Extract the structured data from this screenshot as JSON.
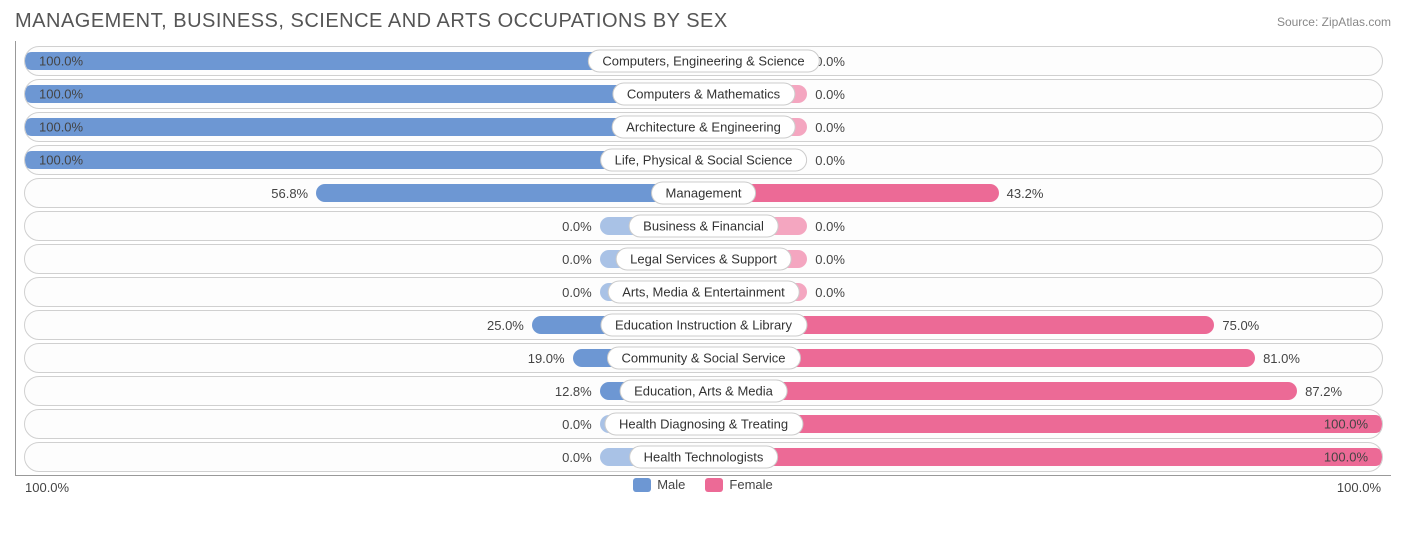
{
  "title": "MANAGEMENT, BUSINESS, SCIENCE AND ARTS OCCUPATIONS BY SEX",
  "source_label": "Source:",
  "source_name": "ZipAtlas.com",
  "axis_left": "100.0%",
  "axis_right": "100.0%",
  "legend_male": "Male",
  "legend_female": "Female",
  "colors": {
    "male": "#6d97d3",
    "male_light": "#a9c2e6",
    "female": "#ec6a96",
    "female_light": "#f4a6c0",
    "row_border": "#d0d0d0",
    "axis_border": "#999999"
  },
  "min_bar_pct": 15,
  "rows": [
    {
      "label": "Computers, Engineering & Science",
      "male": 100.0,
      "female": 0.0,
      "male_txt": "100.0%",
      "female_txt": "0.0%"
    },
    {
      "label": "Computers & Mathematics",
      "male": 100.0,
      "female": 0.0,
      "male_txt": "100.0%",
      "female_txt": "0.0%"
    },
    {
      "label": "Architecture & Engineering",
      "male": 100.0,
      "female": 0.0,
      "male_txt": "100.0%",
      "female_txt": "0.0%"
    },
    {
      "label": "Life, Physical & Social Science",
      "male": 100.0,
      "female": 0.0,
      "male_txt": "100.0%",
      "female_txt": "0.0%"
    },
    {
      "label": "Management",
      "male": 56.8,
      "female": 43.2,
      "male_txt": "56.8%",
      "female_txt": "43.2%"
    },
    {
      "label": "Business & Financial",
      "male": 0.0,
      "female": 0.0,
      "male_txt": "0.0%",
      "female_txt": "0.0%"
    },
    {
      "label": "Legal Services & Support",
      "male": 0.0,
      "female": 0.0,
      "male_txt": "0.0%",
      "female_txt": "0.0%"
    },
    {
      "label": "Arts, Media & Entertainment",
      "male": 0.0,
      "female": 0.0,
      "male_txt": "0.0%",
      "female_txt": "0.0%"
    },
    {
      "label": "Education Instruction & Library",
      "male": 25.0,
      "female": 75.0,
      "male_txt": "25.0%",
      "female_txt": "75.0%"
    },
    {
      "label": "Community & Social Service",
      "male": 19.0,
      "female": 81.0,
      "male_txt": "19.0%",
      "female_txt": "81.0%"
    },
    {
      "label": "Education, Arts & Media",
      "male": 12.8,
      "female": 87.2,
      "male_txt": "12.8%",
      "female_txt": "87.2%"
    },
    {
      "label": "Health Diagnosing & Treating",
      "male": 0.0,
      "female": 100.0,
      "male_txt": "0.0%",
      "female_txt": "100.0%"
    },
    {
      "label": "Health Technologists",
      "male": 0.0,
      "female": 100.0,
      "male_txt": "0.0%",
      "female_txt": "100.0%"
    }
  ]
}
